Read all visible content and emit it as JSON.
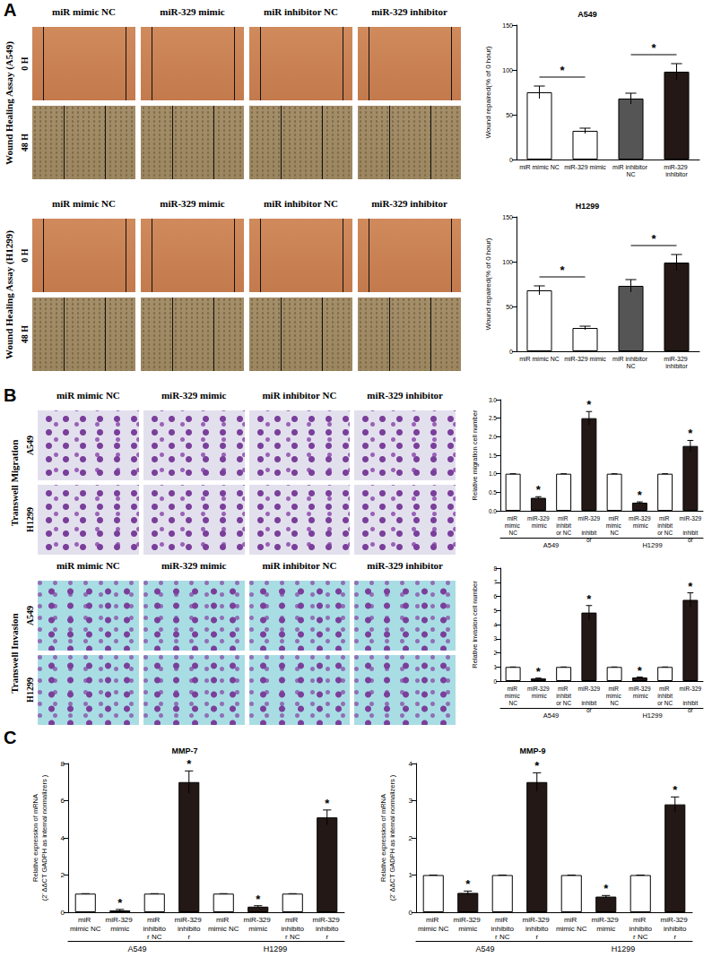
{
  "panel_labels": [
    "A",
    "B",
    "C"
  ],
  "image_grids": [
    {
      "title": "Wound Healing Assay (A549)",
      "columns": [
        "miR mimic NC",
        "miR-329 mimic",
        "miR inhibitor NC",
        "miR-329 inhibitor"
      ],
      "rows": [
        "0 H",
        "48 H"
      ]
    },
    {
      "title": "Wound Healing Assay (H1299)",
      "columns": [
        "miR mimic NC",
        "miR-329 mimic",
        "miR inhibitor NC",
        "miR-329 inhibitor"
      ],
      "rows": [
        "0 H",
        "48 H"
      ]
    },
    {
      "title": "Transwell Migration",
      "columns": [
        "miR mimic NC",
        "miR-329 mimic",
        "miR inhibitor NC",
        "miR-329 inhibitor"
      ],
      "rows": [
        "A549",
        "H1299"
      ]
    },
    {
      "title": "Transwell Invasion",
      "columns": [
        "miR mimic NC",
        "miR-329 mimic",
        "miR inhibitor NC",
        "miR-329 inhibitor"
      ],
      "rows": [
        "A549",
        "H1299"
      ]
    }
  ],
  "chart_data": [
    {
      "type": "bar",
      "title": "A549",
      "y_label": "Wound repaired(% of 0 hour)",
      "categories": [
        "miR mimic NC",
        "miR-329 mimic",
        "miR inhibitor NC",
        "miR-329 inhibitor"
      ],
      "values": [
        75,
        32,
        68,
        98
      ],
      "errors": [
        7,
        3,
        6,
        9
      ],
      "colors": [
        "#ffffff",
        "#ffffff",
        "#555555",
        "#231815"
      ],
      "ylim": [
        0,
        150
      ],
      "yticks": [
        0,
        50,
        100,
        150
      ],
      "grid": false,
      "brackets": [
        {
          "from": 0,
          "to": 1,
          "label": "*"
        },
        {
          "from": 2,
          "to": 3,
          "label": "*"
        }
      ]
    },
    {
      "type": "bar",
      "title": "H1299",
      "y_label": "Wound repaired(% of 0 hour)",
      "categories": [
        "miR mimic NC",
        "miR-329 mimic",
        "miR inhibitor NC",
        "miR-329 inhibitor"
      ],
      "values": [
        68,
        26,
        73,
        99
      ],
      "errors": [
        5,
        2,
        7,
        9
      ],
      "colors": [
        "#ffffff",
        "#ffffff",
        "#555555",
        "#231815"
      ],
      "ylim": [
        0,
        150
      ],
      "yticks": [
        0,
        50,
        100,
        150
      ],
      "grid": false,
      "brackets": [
        {
          "from": 0,
          "to": 1,
          "label": "*"
        },
        {
          "from": 2,
          "to": 3,
          "label": "*"
        }
      ]
    },
    {
      "type": "bar",
      "y_label": "Relative migration cell number",
      "categories": [
        "miR mimic NC",
        "miR-329 mimic",
        "miR inhibitor NC",
        "miR-329 inhibitor",
        "miR mimic NC",
        "miR-329 mimic",
        "miR inhibitor NC",
        "miR-329 inhibitor"
      ],
      "groups": [
        "A549",
        "H1299"
      ],
      "values": [
        1,
        0.35,
        1,
        2.5,
        1,
        0.22,
        1,
        1.75
      ],
      "errors": [
        0,
        0.03,
        0,
        0.18,
        0,
        0.02,
        0,
        0.15
      ],
      "significance": [
        null,
        "*",
        null,
        "*",
        null,
        "*",
        null,
        "*"
      ],
      "colors": [
        "#ffffff",
        "#231815",
        "#ffffff",
        "#231815",
        "#ffffff",
        "#231815",
        "#ffffff",
        "#231815"
      ],
      "ylim": [
        0,
        3
      ],
      "grid": false,
      "yticks": [
        {
          "value": 0,
          "label": "0.0"
        },
        {
          "value": 0.5,
          "label": "0.5"
        },
        {
          "value": 1,
          "label": "1.0"
        },
        {
          "value": 1.5,
          "label": "1.5"
        },
        {
          "value": 2,
          "label": "2.0"
        },
        {
          "value": 2.5,
          "label": "2.5"
        },
        {
          "value": 3,
          "label": "3.0"
        }
      ]
    },
    {
      "type": "bar",
      "y_label": "Relative invasion cell number",
      "categories": [
        "miR mimic NC",
        "miR-329 mimic",
        "miR inhibitor NC",
        "miR-329 inhibitor",
        "miR mimic NC",
        "miR-329 mimic",
        "miR inhibitor NC",
        "miR-329 inhibitor"
      ],
      "groups": [
        "A549",
        "H1299"
      ],
      "values": [
        1,
        0.18,
        1,
        4.85,
        1,
        0.25,
        1,
        5.75
      ],
      "errors": [
        0,
        0.03,
        0,
        0.5,
        0,
        0.03,
        0,
        0.5
      ],
      "significance": [
        null,
        "*",
        null,
        "*",
        null,
        "*",
        null,
        "*"
      ],
      "colors": [
        "#ffffff",
        "#231815",
        "#ffffff",
        "#231815",
        "#ffffff",
        "#231815",
        "#ffffff",
        "#231815"
      ],
      "ylim": [
        0,
        8
      ],
      "yticks": [
        0,
        1,
        2,
        3,
        4,
        5,
        6,
        7,
        8
      ],
      "grid": false
    },
    {
      "type": "bar",
      "title": "MMP-7",
      "y_label": "Relative expression of mRNA\n(2⁻ΔΔCT GADPH as internal normalizers )",
      "categories": [
        "miR mimic NC",
        "miR-329 mimic",
        "miR inhibitor NC",
        "miR-329 inhibitor",
        "miR mimic NC",
        "miR-329 mimic",
        "miR inhibitor NC",
        "miR-329 inhibitor"
      ],
      "groups": [
        "A549",
        "H1299"
      ],
      "values": [
        1,
        0.1,
        1,
        7.0,
        1,
        0.3,
        1,
        5.1
      ],
      "errors": [
        0,
        0.05,
        0,
        0.6,
        0,
        0.05,
        0,
        0.4
      ],
      "significance": [
        null,
        "*",
        null,
        "*",
        null,
        "*",
        null,
        "*"
      ],
      "colors": [
        "#ffffff",
        "#231815",
        "#ffffff",
        "#231815",
        "#ffffff",
        "#231815",
        "#ffffff",
        "#231815"
      ],
      "ylim": [
        0,
        8
      ],
      "yticks": [
        0,
        2,
        4,
        6,
        8
      ],
      "grid": false
    },
    {
      "type": "bar",
      "title": "MMP-9",
      "y_label": "Relative expression of mRNA\n(2⁻ΔΔCT GADPH as internal normalizers )",
      "categories": [
        "miR mimic NC",
        "miR-329 mimic",
        "miR inhibitor NC",
        "miR-329 inhibitor",
        "miR mimic NC",
        "miR-329 mimic",
        "miR inhibitor NC",
        "miR-329 inhibitor"
      ],
      "groups": [
        "A549",
        "H1299"
      ],
      "values": [
        1,
        0.52,
        1,
        3.5,
        1,
        0.42,
        1,
        2.9
      ],
      "errors": [
        0,
        0.05,
        0,
        0.25,
        0,
        0.03,
        0,
        0.2
      ],
      "significance": [
        null,
        "*",
        null,
        "*",
        null,
        "*",
        null,
        "*"
      ],
      "colors": [
        "#ffffff",
        "#231815",
        "#ffffff",
        "#231815",
        "#ffffff",
        "#231815",
        "#ffffff",
        "#231815"
      ],
      "ylim": [
        0,
        4
      ],
      "yticks": [
        0,
        1,
        2,
        3,
        4
      ],
      "grid": false
    }
  ]
}
